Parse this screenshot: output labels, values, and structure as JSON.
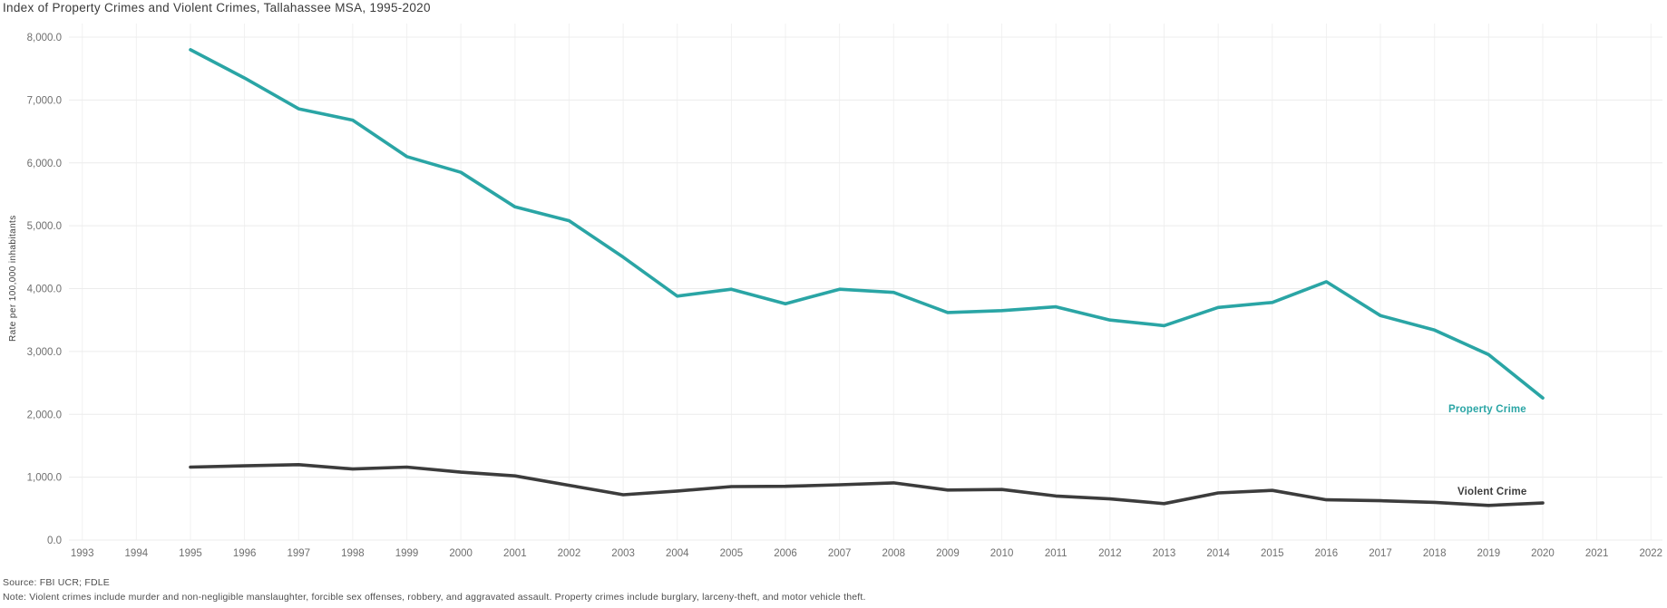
{
  "page": {
    "title": "Index of Property Crimes and Violent Crimes, Tallahassee MSA, 1995-2020",
    "source": "Source: FBI UCR; FDLE",
    "note": "Note: Violent crimes include murder and non-negligible manslaughter, forcible sex offenses, robbery, and aggravated assault. Property crimes include burglary, larceny-theft, and motor vehicle theft."
  },
  "chart_data": {
    "type": "line",
    "title": "Index of Property Crimes and Violent Crimes, Tallahassee MSA, 1995-2020",
    "xlabel": "",
    "ylabel": "Rate per 100,000 inhabitants",
    "grid": true,
    "legend_position": "inline-end-of-line-labels",
    "x_range": [
      1993,
      2022
    ],
    "ylim": [
      0,
      8000
    ],
    "x_tick_labels": [
      "1993",
      "1994",
      "1995",
      "1996",
      "1997",
      "1998",
      "1999",
      "2000",
      "2001",
      "2002",
      "2003",
      "2004",
      "2005",
      "2006",
      "2007",
      "2008",
      "2009",
      "2010",
      "2011",
      "2012",
      "2013",
      "2014",
      "2015",
      "2016",
      "2017",
      "2018",
      "2019",
      "2020",
      "2021",
      "2022"
    ],
    "y_tick_values": [
      0,
      1000,
      2000,
      3000,
      4000,
      5000,
      6000,
      7000,
      8000
    ],
    "y_tick_labels": [
      "0.0",
      "1,000.0",
      "2,000.0",
      "3,000.0",
      "4,000.0",
      "5,000.0",
      "6,000.0",
      "7,000.0",
      "8,000.0"
    ],
    "years": [
      1995,
      1996,
      1997,
      1998,
      1999,
      2000,
      2001,
      2002,
      2003,
      2004,
      2005,
      2006,
      2007,
      2008,
      2009,
      2010,
      2011,
      2012,
      2013,
      2014,
      2015,
      2016,
      2017,
      2018,
      2019,
      2020
    ],
    "series": [
      {
        "name": "Property Crime",
        "color": "#2aa5a5",
        "values": [
          7800,
          7350,
          6860,
          6680,
          6100,
          5850,
          5300,
          5080,
          4500,
          3880,
          3990,
          3760,
          3990,
          3940,
          3620,
          3650,
          3710,
          3500,
          3410,
          3700,
          3780,
          4110,
          3570,
          3340,
          2950,
          2260
        ]
      },
      {
        "name": "Violent Crime",
        "color": "#3c3c3c",
        "values": [
          1160,
          1180,
          1200,
          1130,
          1160,
          1080,
          1020,
          870,
          720,
          780,
          850,
          855,
          880,
          910,
          795,
          805,
          700,
          655,
          580,
          750,
          790,
          640,
          625,
          600,
          550,
          590
        ]
      }
    ],
    "style": {
      "grid_color_h": "#ececec",
      "grid_color_v": "#f1f1f1",
      "tick_label_color": "#6f6f6f",
      "line_width": 3.6
    }
  }
}
